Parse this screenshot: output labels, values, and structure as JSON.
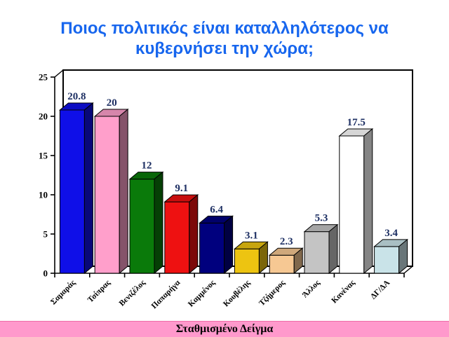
{
  "title": {
    "text": "Ποιος πολιτικός είναι καταλληλότερος να κυβερνήσει την χώρα;",
    "color": "#1766EE"
  },
  "footer": {
    "text": "Σταθμισμένο Δείγμα",
    "background": "#FF99CC"
  },
  "chart_data": {
    "type": "bar",
    "style": "3d-column",
    "title": "Ποιος πολιτικός είναι καταλληλότερος να κυβερνήσει την χώρα;",
    "categories": [
      "Σαμαράς",
      "Τσίπρας",
      "Βενιζέλος",
      "Παπαρήγα",
      "Καμμένος",
      "Κουβέλης",
      "Τζήμερος",
      "Άλλος",
      "Κανένας",
      "ΔΓ/ΔΑ"
    ],
    "values": [
      20.8,
      20,
      12,
      9.1,
      6.4,
      3.1,
      2.3,
      5.3,
      17.5,
      3.4
    ],
    "value_labels": [
      "20.8",
      "20",
      "12",
      "9.1",
      "6.4",
      "3.1",
      "2.3",
      "5.3",
      "17.5",
      "3.4"
    ],
    "bar_colors": [
      "#0F0FE8",
      "#FF9FCB",
      "#0A7A0A",
      "#EE1111",
      "#00007E",
      "#EDC411",
      "#F6C893",
      "#C4C4C4",
      "#FFFFFF",
      "#C9E3E8"
    ],
    "value_label_color": "#1D2F63",
    "axis_color": "#000000",
    "category_label_color": "#000000",
    "yticks": [
      0,
      5,
      10,
      15,
      20,
      25
    ],
    "ylim": [
      0,
      25
    ],
    "xlabel": "",
    "ylabel": "",
    "grid": false,
    "legend": "none"
  }
}
